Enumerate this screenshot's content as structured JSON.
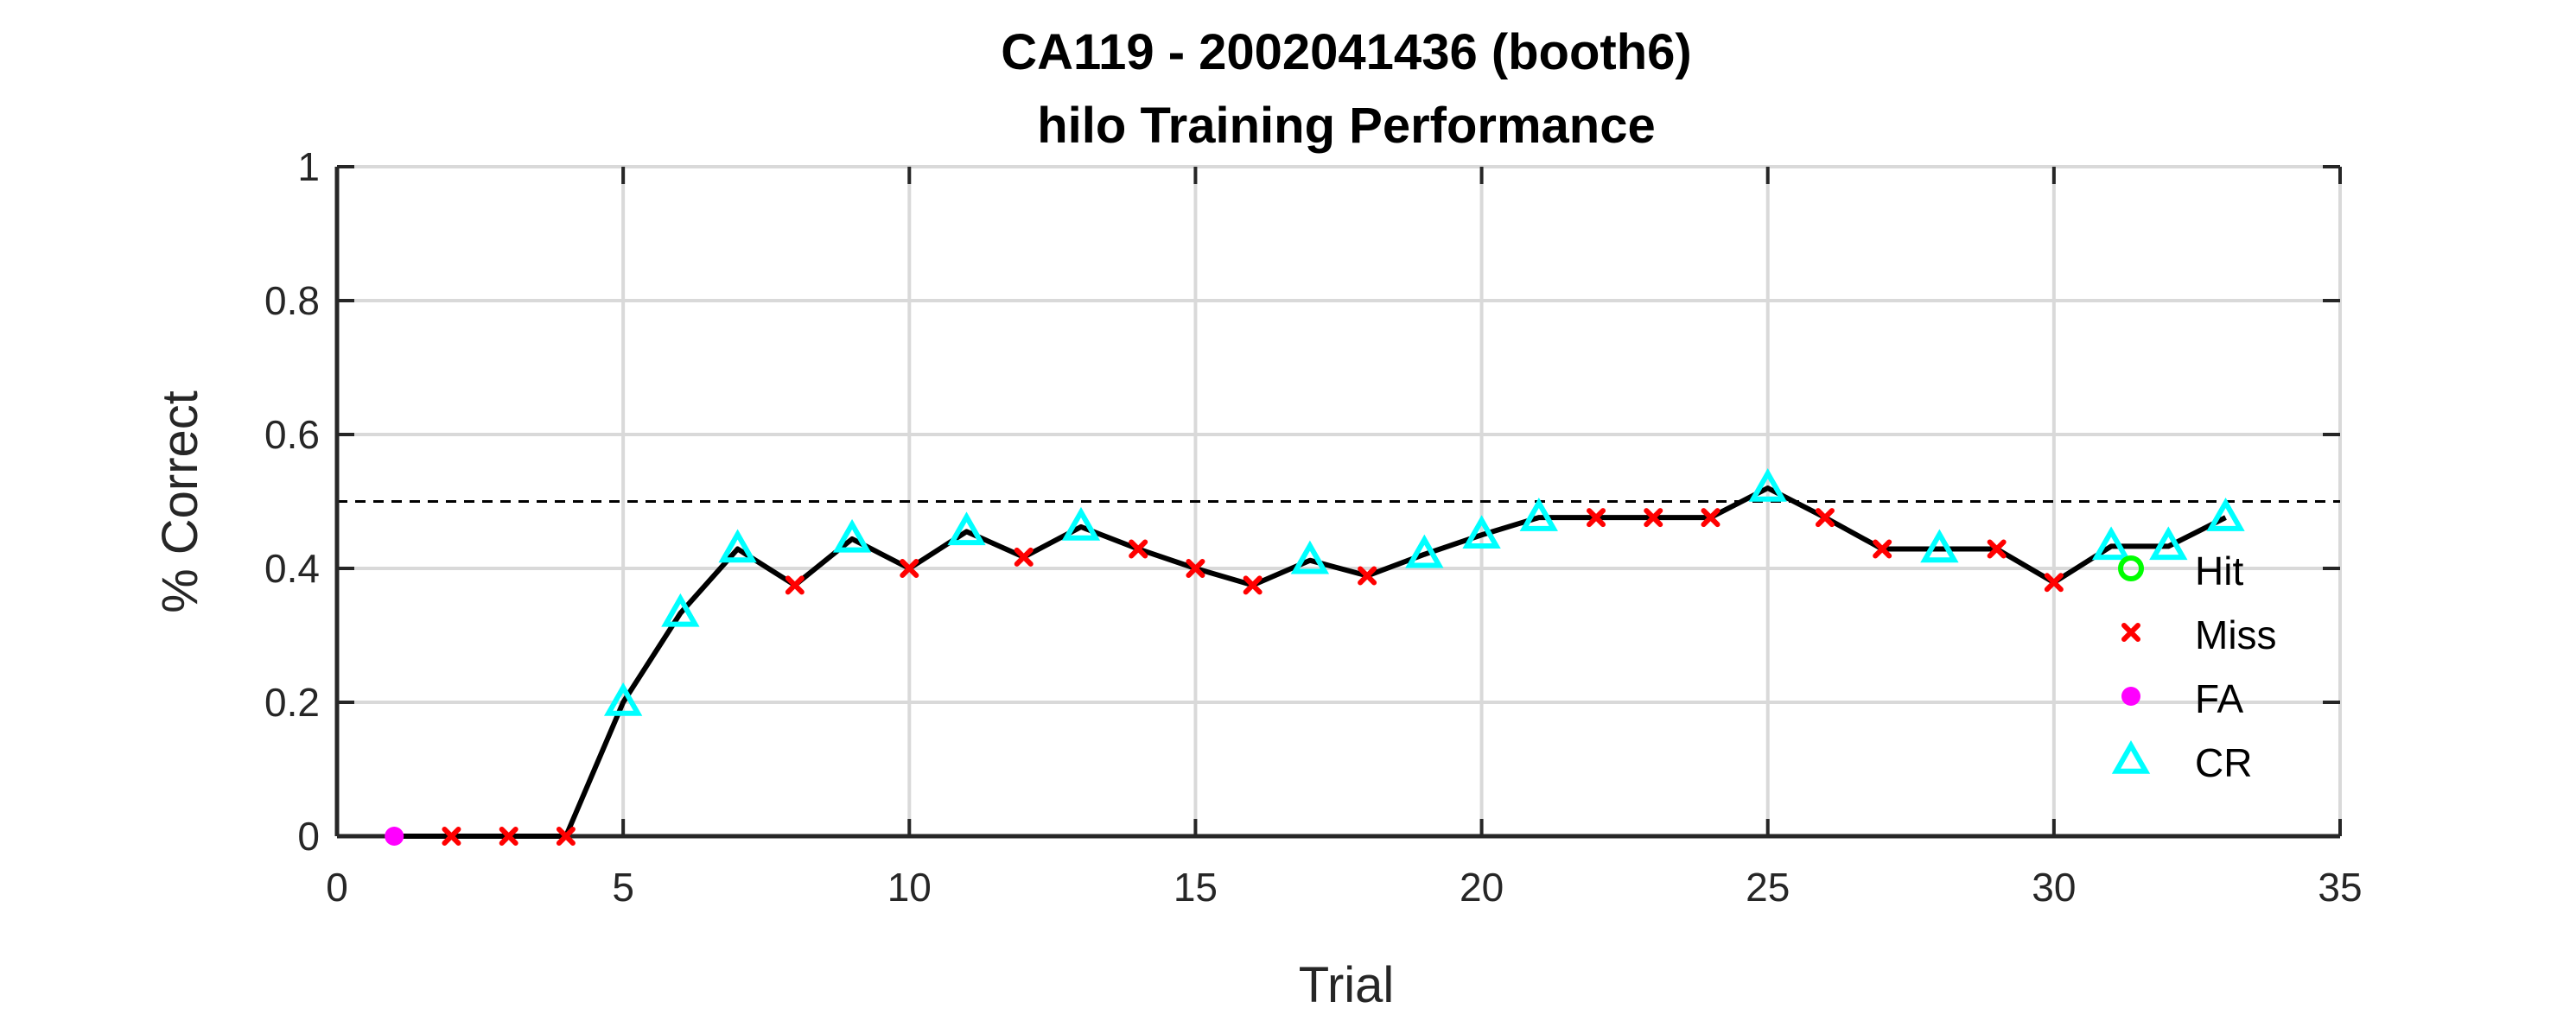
{
  "chart_data": {
    "type": "line",
    "title_line1": "CA119 - 2002041436 (booth6)",
    "title_line2": "hilo Training Performance",
    "xlabel": "Trial",
    "ylabel": "% Correct",
    "xlim": [
      0,
      35
    ],
    "ylim": [
      0,
      1
    ],
    "xticks": [
      "0",
      "5",
      "10",
      "15",
      "20",
      "25",
      "30",
      "35"
    ],
    "yticks": [
      "0",
      "0.2",
      "0.4",
      "0.6",
      "0.8",
      "1"
    ],
    "grid": true,
    "reference_line": 0.5,
    "legend_position": "lower-right",
    "legend": [
      {
        "label": "Hit",
        "marker": "circle",
        "color": "#00ff00"
      },
      {
        "label": "Miss",
        "marker": "x",
        "color": "#ff0000"
      },
      {
        "label": "FA",
        "marker": "dot",
        "color": "#ff00ff"
      },
      {
        "label": "CR",
        "marker": "triangle",
        "color": "#00ffff"
      }
    ],
    "x": [
      1,
      2,
      3,
      4,
      5,
      6,
      7,
      8,
      9,
      10,
      11,
      12,
      13,
      14,
      15,
      16,
      17,
      18,
      19,
      20,
      21,
      22,
      23,
      24,
      25,
      26,
      27,
      28,
      29,
      30,
      31,
      32,
      33
    ],
    "y": [
      0,
      0,
      0,
      0,
      0.2,
      0.333,
      0.429,
      0.375,
      0.444,
      0.4,
      0.455,
      0.417,
      0.462,
      0.429,
      0.4,
      0.375,
      0.412,
      0.389,
      0.421,
      0.45,
      0.476,
      0.476,
      0.476,
      0.476,
      0.52,
      0.476,
      0.429,
      0.429,
      0.429,
      0.379,
      0.433,
      0.433,
      0.476
    ],
    "outcomes": [
      "FA",
      "Miss",
      "Miss",
      "Miss",
      "CR",
      "CR",
      "CR",
      "Miss",
      "CR",
      "Miss",
      "CR",
      "Miss",
      "CR",
      "Miss",
      "Miss",
      "Miss",
      "CR",
      "Miss",
      "CR",
      "CR",
      "CR",
      "Miss",
      "Miss",
      "Miss",
      "CR",
      "Miss",
      "Miss",
      "CR",
      "Miss",
      "Miss",
      "CR",
      "CR",
      "CR"
    ],
    "line_color": "#000000"
  }
}
